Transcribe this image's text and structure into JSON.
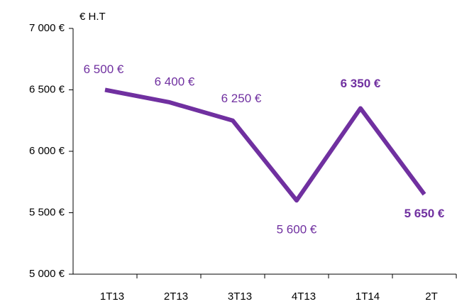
{
  "chart_data": {
    "type": "line",
    "y_axis_label": "€ H.T",
    "categories": [
      "1T13",
      "2T13",
      "3T13",
      "4T13",
      "1T14",
      "2T"
    ],
    "values": [
      6500,
      6400,
      6250,
      5600,
      6350,
      5650
    ],
    "value_labels": [
      "6 500 €",
      "6 400 €",
      "6 250 €",
      "5 600 €",
      "6 350 €",
      "5 650 €"
    ],
    "value_label_bold": [
      false,
      false,
      false,
      false,
      true,
      true
    ],
    "color": "#7030a0",
    "ylim": [
      5000,
      7000
    ],
    "yticks": [
      {
        "value": 5000,
        "label": "5 000 €"
      },
      {
        "value": 5500,
        "label": "5 500 €"
      },
      {
        "value": 6000,
        "label": "6 000 €"
      },
      {
        "value": 6500,
        "label": "6 500 €"
      },
      {
        "value": 7000,
        "label": "7 000 €"
      }
    ],
    "grid": false
  }
}
